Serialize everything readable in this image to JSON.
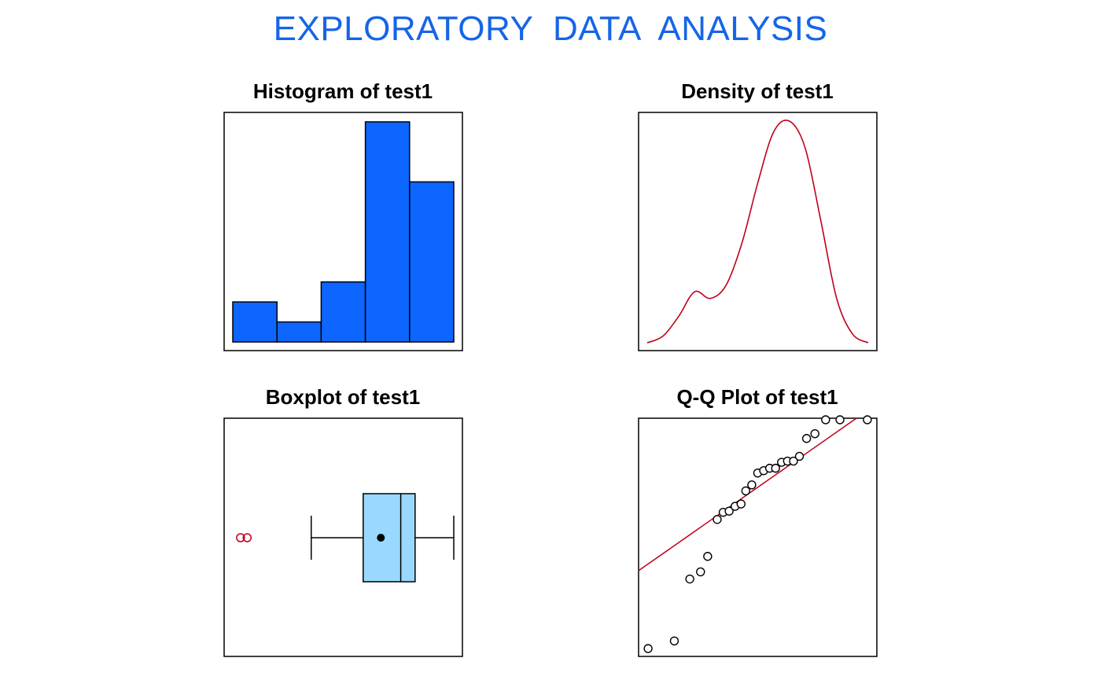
{
  "page": {
    "title": "EXPLORATORY  DATA  ANALYSIS",
    "title_color": "#1565e8"
  },
  "colors": {
    "hist_fill": "#0d66ff",
    "density_line": "#c0001a",
    "box_fill": "#99d9ff",
    "outlier": "#c0001a",
    "qq_line": "#c0001a",
    "frame": "#000000"
  },
  "chart_data": [
    {
      "type": "bar",
      "title": "Histogram of test1",
      "counts": [
        2,
        1,
        3,
        11,
        8
      ],
      "ylim": [
        0,
        11
      ]
    },
    {
      "type": "line",
      "title": "Density of test1",
      "density_profile": [
        0.0,
        0.03,
        0.12,
        0.23,
        0.2,
        0.26,
        0.45,
        0.72,
        0.95,
        1.0,
        0.88,
        0.55,
        0.2,
        0.04,
        0.0
      ]
    },
    {
      "type": "box",
      "title": "Boxplot of test1",
      "summary": {
        "whisker_low": 0.355,
        "q1": 0.59,
        "median": 0.76,
        "mean": 0.67,
        "q3": 0.825,
        "whisker_high": 1.0
      },
      "outliers": [
        0.035,
        0.065
      ],
      "xlim": [
        0,
        1
      ]
    },
    {
      "type": "scatter",
      "title": "Q-Q Plot of test1",
      "points": [
        {
          "x": 0.04,
          "y": 0.03
        },
        {
          "x": 0.15,
          "y": 0.065
        },
        {
          "x": 0.215,
          "y": 0.325
        },
        {
          "x": 0.26,
          "y": 0.355
        },
        {
          "x": 0.29,
          "y": 0.42
        },
        {
          "x": 0.33,
          "y": 0.575
        },
        {
          "x": 0.355,
          "y": 0.605
        },
        {
          "x": 0.38,
          "y": 0.61
        },
        {
          "x": 0.405,
          "y": 0.63
        },
        {
          "x": 0.43,
          "y": 0.64
        },
        {
          "x": 0.45,
          "y": 0.695
        },
        {
          "x": 0.475,
          "y": 0.72
        },
        {
          "x": 0.5,
          "y": 0.77
        },
        {
          "x": 0.525,
          "y": 0.78
        },
        {
          "x": 0.55,
          "y": 0.79
        },
        {
          "x": 0.575,
          "y": 0.79
        },
        {
          "x": 0.6,
          "y": 0.815
        },
        {
          "x": 0.625,
          "y": 0.82
        },
        {
          "x": 0.65,
          "y": 0.82
        },
        {
          "x": 0.675,
          "y": 0.84
        },
        {
          "x": 0.705,
          "y": 0.915
        },
        {
          "x": 0.74,
          "y": 0.935
        },
        {
          "x": 0.785,
          "y": 0.995
        },
        {
          "x": 0.845,
          "y": 1.005
        },
        {
          "x": 0.96,
          "y": 1.005
        }
      ],
      "line": {
        "y_at_x0": 0.36,
        "slope": 0.7
      },
      "xlim": [
        0,
        1
      ],
      "ylim": [
        0,
        1
      ]
    }
  ]
}
